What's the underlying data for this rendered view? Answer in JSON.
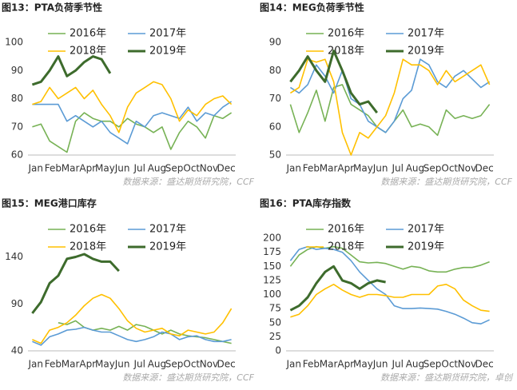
{
  "chart_data": [
    {
      "type": "line",
      "title": "图13：PTA负荷季节性",
      "source": "数据来源：盛达期货研究院，CCF",
      "categories": [
        "Jan",
        null,
        "Feb",
        null,
        "Mar",
        null,
        "Apr",
        null,
        "May",
        null,
        "Jun",
        null,
        "Jul",
        null,
        "Aug",
        null,
        "Sep",
        null,
        "Oct",
        null,
        "Nov",
        null,
        "Dec",
        null
      ],
      "ylim": [
        60,
        100
      ],
      "yticks": [
        60,
        70,
        80,
        90,
        100
      ],
      "series": [
        {
          "name": "2016年",
          "color": "#77b255",
          "values": [
            70,
            71,
            65,
            63,
            61,
            72,
            75,
            73,
            72,
            72,
            70,
            73,
            71,
            70,
            68,
            70,
            62,
            68,
            72,
            70,
            66,
            74,
            73,
            75
          ]
        },
        {
          "name": "2017年",
          "color": "#5b9bd5",
          "values": [
            78,
            78,
            78,
            78,
            72,
            74,
            72,
            70,
            72,
            68,
            66,
            64,
            72,
            70,
            74,
            75,
            74,
            73,
            77,
            72,
            75,
            74,
            77,
            79
          ]
        },
        {
          "name": "2018年",
          "color": "#ffc000",
          "values": [
            78,
            79,
            84,
            80,
            82,
            84,
            80,
            83,
            78,
            74,
            68,
            77,
            82,
            84,
            86,
            85,
            80,
            72,
            76,
            74,
            78,
            80,
            81,
            78
          ]
        },
        {
          "name": "2019年",
          "color": "#3d6b2c",
          "values": [
            85,
            86,
            90,
            95,
            88,
            90,
            93,
            95,
            94,
            89,
            null,
            null,
            null,
            null,
            null,
            null,
            null,
            null,
            null,
            null,
            null,
            null,
            null,
            null
          ]
        }
      ]
    },
    {
      "type": "line",
      "title": "图14：MEG负荷季节性",
      "source": "数据来源：盛达期货研究院，CCF",
      "categories": [
        "Jan",
        null,
        "Feb",
        null,
        "Mar",
        null,
        "Apr",
        null,
        "May",
        null,
        "Jun",
        null,
        "Jul",
        null,
        "Aug",
        null,
        "Sep",
        null,
        "Oct",
        null,
        "Nov",
        null,
        "Dec",
        null
      ],
      "ylim": [
        50,
        90
      ],
      "yticks": [
        50,
        60,
        70,
        80,
        90
      ],
      "series": [
        {
          "name": "2016年",
          "color": "#77b255",
          "values": [
            68,
            58,
            65,
            73,
            62,
            74,
            75,
            68,
            66,
            64,
            60,
            58,
            62,
            66,
            60,
            61,
            60,
            57,
            66,
            63,
            64,
            63,
            64,
            68
          ]
        },
        {
          "name": "2017年",
          "color": "#5b9bd5",
          "values": [
            74,
            72,
            75,
            82,
            78,
            72,
            80,
            70,
            68,
            62,
            60,
            58,
            62,
            70,
            73,
            84,
            82,
            76,
            74,
            78,
            80,
            77,
            74,
            76
          ]
        },
        {
          "name": "2018年",
          "color": "#ffc000",
          "values": [
            72,
            74,
            84,
            83,
            84,
            76,
            58,
            50,
            58,
            56,
            60,
            64,
            72,
            84,
            82,
            82,
            80,
            75,
            80,
            76,
            78,
            80,
            82,
            75
          ]
        },
        {
          "name": "2019年",
          "color": "#3d6b2c",
          "values": [
            76,
            80,
            85,
            80,
            76,
            87,
            80,
            72,
            68,
            69,
            65,
            null,
            null,
            null,
            null,
            null,
            null,
            null,
            null,
            null,
            null,
            null,
            null,
            null
          ]
        }
      ]
    },
    {
      "type": "line",
      "title": "图15：MEG港口库存",
      "source": "数据来源：盛达期货研究院，CCF",
      "categories": [
        "Jan",
        null,
        "Feb",
        null,
        "Mar",
        null,
        "Apr",
        null,
        "May",
        null,
        "Jun",
        null,
        "Jul",
        null,
        "Aug",
        null,
        "Sep",
        null,
        "Oct",
        null,
        "Nov",
        null,
        "Dec",
        null
      ],
      "ylim": [
        40,
        160
      ],
      "yticks": [
        40,
        90,
        140
      ],
      "series": [
        {
          "name": "2016年",
          "color": "#77b255",
          "values": [
            null,
            null,
            null,
            70,
            68,
            72,
            65,
            62,
            64,
            62,
            66,
            62,
            68,
            66,
            62,
            58,
            62,
            58,
            56,
            55,
            54,
            52,
            50,
            48
          ]
        },
        {
          "name": "2017年",
          "color": "#5b9bd5",
          "values": [
            50,
            46,
            55,
            58,
            62,
            63,
            65,
            62,
            60,
            60,
            56,
            52,
            50,
            52,
            55,
            60,
            58,
            52,
            55,
            56,
            52,
            50,
            50,
            52
          ]
        },
        {
          "name": "2018年",
          "color": "#ffc000",
          "values": [
            52,
            48,
            62,
            65,
            70,
            78,
            88,
            96,
            100,
            96,
            85,
            72,
            64,
            60,
            62,
            64,
            58,
            56,
            62,
            60,
            58,
            60,
            70,
            85
          ]
        },
        {
          "name": "2019年",
          "color": "#3d6b2c",
          "values": [
            80,
            92,
            112,
            120,
            138,
            140,
            143,
            138,
            135,
            135,
            125,
            null,
            null,
            null,
            null,
            null,
            null,
            null,
            null,
            null,
            null,
            null,
            null,
            null
          ]
        }
      ]
    },
    {
      "type": "line",
      "title": "图16：PTA库存指数",
      "source": "数据来源：盛达期货研究院，卓创",
      "categories": [
        "Jan",
        null,
        "Feb",
        null,
        "Mar",
        null,
        "Apr",
        null,
        "May",
        null,
        "Jun",
        null,
        "Jul",
        null,
        "Aug",
        null,
        "Sep",
        null,
        "Oct",
        null,
        "Nov",
        null,
        "Dec",
        null
      ],
      "ylim": [
        0,
        200
      ],
      "yticks": [
        0,
        25,
        50,
        75,
        100,
        125,
        150,
        175,
        200
      ],
      "series": [
        {
          "name": "2016年",
          "color": "#77b255",
          "values": [
            150,
            170,
            180,
            185,
            182,
            185,
            182,
            170,
            158,
            156,
            157,
            155,
            150,
            145,
            150,
            148,
            142,
            140,
            140,
            145,
            148,
            148,
            152,
            158
          ]
        },
        {
          "name": "2017年",
          "color": "#5b9bd5",
          "values": [
            160,
            180,
            185,
            180,
            182,
            180,
            175,
            160,
            140,
            125,
            110,
            100,
            80,
            75,
            75,
            76,
            75,
            74,
            70,
            65,
            58,
            50,
            48,
            55
          ]
        },
        {
          "name": "2018年",
          "color": "#ffc000",
          "values": [
            60,
            65,
            80,
            100,
            110,
            118,
            108,
            100,
            95,
            100,
            100,
            98,
            95,
            95,
            100,
            100,
            100,
            115,
            118,
            110,
            90,
            80,
            72,
            70
          ]
        },
        {
          "name": "2019年",
          "color": "#3d6b2c",
          "values": [
            72,
            80,
            95,
            120,
            140,
            150,
            125,
            120,
            110,
            120,
            125,
            122,
            null,
            null,
            null,
            null,
            null,
            null,
            null,
            null,
            null,
            null,
            null,
            null
          ]
        }
      ]
    }
  ]
}
